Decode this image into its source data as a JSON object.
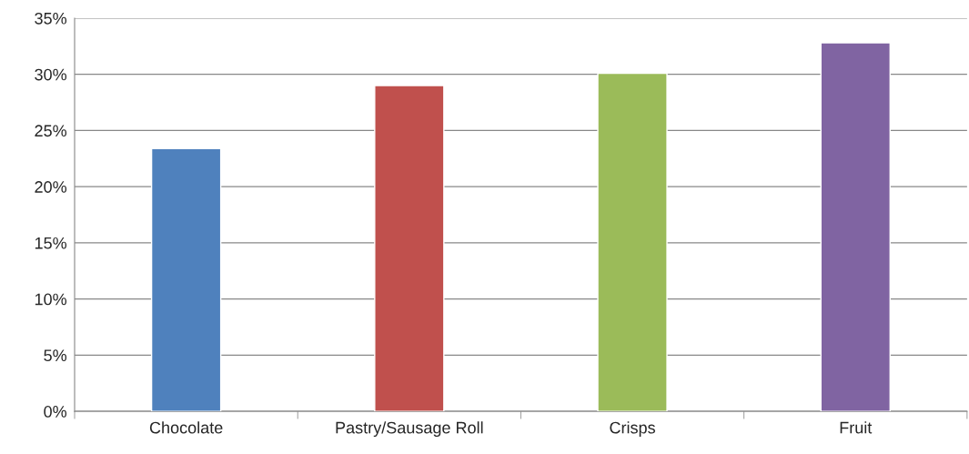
{
  "chart_data": {
    "type": "bar",
    "categories": [
      "Chocolate",
      "Pastry/Sausage Roll",
      "Crisps",
      "Fruit"
    ],
    "values": [
      23.4,
      29.0,
      30.1,
      32.8
    ],
    "colors": [
      "#4f81bd",
      "#c0504d",
      "#9bbb59",
      "#8064a2"
    ],
    "ylim": [
      0,
      35
    ],
    "yticks": [
      {
        "value": 0,
        "label": "0%"
      },
      {
        "value": 5,
        "label": "5%"
      },
      {
        "value": 10,
        "label": "10%"
      },
      {
        "value": 15,
        "label": "15%"
      },
      {
        "value": 20,
        "label": "20%"
      },
      {
        "value": 25,
        "label": "25%"
      },
      {
        "value": 30,
        "label": "30%"
      },
      {
        "value": 35,
        "label": "35%"
      }
    ],
    "grid": "y"
  }
}
